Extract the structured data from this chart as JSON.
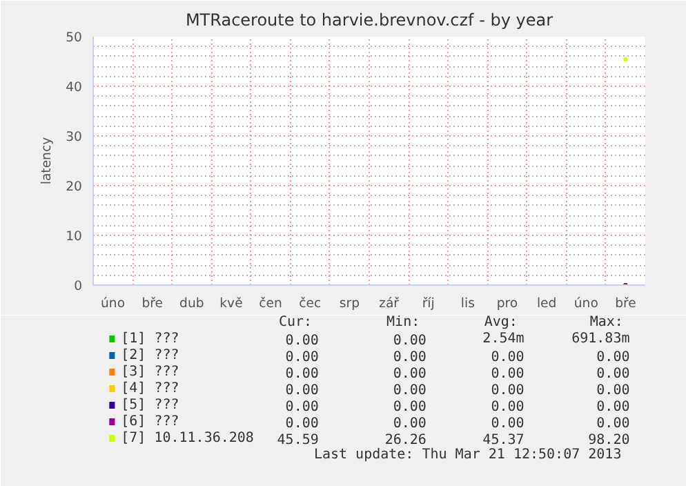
{
  "chart_data": {
    "type": "scatter",
    "title": "MTRaceroute to harvie.brevnov.czf - by year",
    "ylabel": "latency",
    "categories": [
      "úno",
      "bře",
      "dub",
      "kvě",
      "čen",
      "čec",
      "srp",
      "zář",
      "říj",
      "lis",
      "pro",
      "led",
      "úno",
      "bře"
    ],
    "series": [
      {
        "name": "[1] ???",
        "color": "#00cc00",
        "values": [
          null,
          null,
          null,
          null,
          null,
          null,
          null,
          null,
          null,
          null,
          null,
          null,
          null,
          0
        ]
      },
      {
        "name": "[2] ???",
        "color": "#0066b3",
        "values": [
          null,
          null,
          null,
          null,
          null,
          null,
          null,
          null,
          null,
          null,
          null,
          null,
          null,
          0
        ]
      },
      {
        "name": "[3] ???",
        "color": "#ff8000",
        "values": [
          null,
          null,
          null,
          null,
          null,
          null,
          null,
          null,
          null,
          null,
          null,
          null,
          null,
          0
        ]
      },
      {
        "name": "[4] ???",
        "color": "#ffcc00",
        "values": [
          null,
          null,
          null,
          null,
          null,
          null,
          null,
          null,
          null,
          null,
          null,
          null,
          null,
          0
        ]
      },
      {
        "name": "[5] ???",
        "color": "#330099",
        "values": [
          null,
          null,
          null,
          null,
          null,
          null,
          null,
          null,
          null,
          null,
          null,
          null,
          null,
          0
        ]
      },
      {
        "name": "[6] ???",
        "color": "#990099",
        "values": [
          null,
          null,
          null,
          null,
          null,
          null,
          null,
          null,
          null,
          null,
          null,
          null,
          null,
          0
        ]
      },
      {
        "name": "[7] 10.11.36.208",
        "color": "#ccff00",
        "values": [
          null,
          null,
          null,
          null,
          null,
          null,
          null,
          null,
          null,
          null,
          null,
          null,
          null,
          45.4
        ]
      }
    ],
    "ylim": [
      0,
      50
    ],
    "yticks": [
      0,
      {
        "value": 2,
        "label": null
      },
      {
        "value": 4,
        "label": null
      },
      {
        "value": 6,
        "label": null
      },
      {
        "value": 8,
        "label": null
      },
      10,
      {
        "value": 12,
        "label": null
      },
      {
        "value": 14,
        "label": null
      },
      {
        "value": 16,
        "label": null
      },
      {
        "value": 18,
        "label": null
      },
      20,
      {
        "value": 22,
        "label": null
      },
      {
        "value": 24,
        "label": null
      },
      {
        "value": 26,
        "label": null
      },
      {
        "value": 28,
        "label": null
      },
      30,
      {
        "value": 32,
        "label": null
      },
      {
        "value": 34,
        "label": null
      },
      {
        "value": 36,
        "label": null
      },
      {
        "value": 38,
        "label": null
      },
      40,
      {
        "value": 42,
        "label": null
      },
      {
        "value": 44,
        "label": null
      },
      {
        "value": 46,
        "label": null
      },
      {
        "value": 48,
        "label": null
      },
      50
    ],
    "grid": true,
    "legend": "bottom",
    "annotations": [
      "Cur:",
      "Min:",
      "Avg:",
      "Max:",
      "0.00",
      "0.00",
      "2.54m",
      "691.83m",
      "0.00",
      "0.00",
      "0.00",
      "0.00",
      "0.00",
      "0.00",
      "0.00",
      "0.00",
      "0.00",
      "0.00",
      "0.00",
      "0.00",
      "0.00",
      "0.00",
      "0.00",
      "0.00",
      "0.00",
      "0.00",
      "0.00",
      "0.00",
      "45.59",
      "26.26",
      "45.37",
      "98.20",
      "Last update:  Thu Mar 21 12:50:07 2013"
    ]
  }
}
